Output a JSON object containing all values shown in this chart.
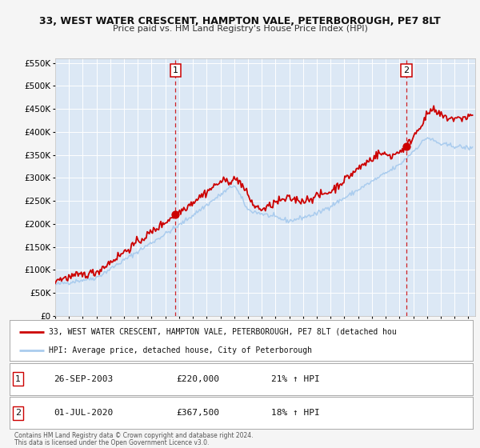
{
  "title1": "33, WEST WATER CRESCENT, HAMPTON VALE, PETERBOROUGH, PE7 8LT",
  "title2": "Price paid vs. HM Land Registry's House Price Index (HPI)",
  "ylim": [
    0,
    550000
  ],
  "yticks": [
    0,
    50000,
    100000,
    150000,
    200000,
    250000,
    300000,
    350000,
    400000,
    450000,
    500000,
    550000
  ],
  "xlim_start": 1995.0,
  "xlim_end": 2025.5,
  "background_color": "#f5f5f5",
  "plot_bg_color": "#dce8f5",
  "grid_color": "#ffffff",
  "red_line_color": "#cc0000",
  "blue_line_color": "#aaccee",
  "marker1_date": 2003.74,
  "marker1_value": 220000,
  "marker2_date": 2020.5,
  "marker2_value": 367500,
  "legend_line1": "33, WEST WATER CRESCENT, HAMPTON VALE, PETERBOROUGH, PE7 8LT (detached hou",
  "legend_line2": "HPI: Average price, detached house, City of Peterborough",
  "table_row1_num": "1",
  "table_row1_date": "26-SEP-2003",
  "table_row1_price": "£220,000",
  "table_row1_hpi": "21% ↑ HPI",
  "table_row2_num": "2",
  "table_row2_date": "01-JUL-2020",
  "table_row2_price": "£367,500",
  "table_row2_hpi": "18% ↑ HPI",
  "footer1": "Contains HM Land Registry data © Crown copyright and database right 2024.",
  "footer2": "This data is licensed under the Open Government Licence v3.0."
}
